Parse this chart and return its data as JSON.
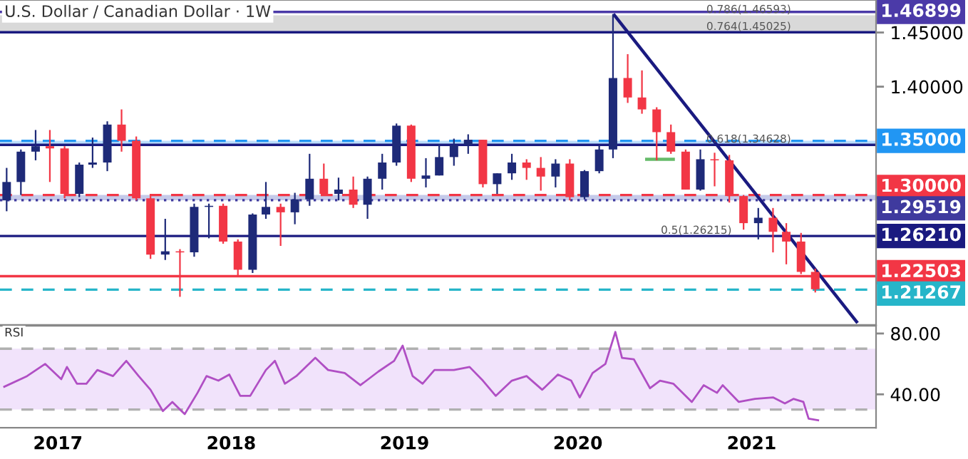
{
  "chart_data": [
    {
      "type": "candlestick",
      "title": "U.S. Dollar / Canadian Dollar · 1W",
      "tick_labels": "y",
      "x": [
        "2016-09-15",
        "2016-10-15",
        "2016-11-15",
        "2016-12-15",
        "2017-01-15",
        "2017-02-15",
        "2017-03-15",
        "2017-04-15",
        "2017-05-15",
        "2017-06-15",
        "2017-07-15",
        "2017-08-15",
        "2017-09-15",
        "2017-10-15",
        "2017-11-15",
        "2017-12-15",
        "2018-01-15",
        "2018-02-15",
        "2018-03-15",
        "2018-04-15",
        "2018-05-15",
        "2018-06-15",
        "2018-07-15",
        "2018-08-15",
        "2018-09-15",
        "2018-10-15",
        "2018-11-15",
        "2018-12-15",
        "2019-01-15",
        "2019-02-15",
        "2019-03-15",
        "2019-04-15",
        "2019-05-15",
        "2019-06-15",
        "2019-07-15",
        "2019-08-15",
        "2019-09-15",
        "2019-10-15",
        "2019-11-15",
        "2019-12-15",
        "2020-01-15",
        "2020-02-15",
        "2020-03-15",
        "2020-04-15",
        "2020-05-15",
        "2020-06-15",
        "2020-07-15",
        "2020-08-15",
        "2020-09-15",
        "2020-10-15",
        "2020-11-15",
        "2020-12-15",
        "2021-01-15",
        "2021-02-15",
        "2021-03-15",
        "2021-04-15",
        "2021-05-15"
      ],
      "ohlc": [
        [
          1.295,
          1.325,
          1.285,
          1.312
        ],
        [
          1.312,
          1.342,
          1.3,
          1.34
        ],
        [
          1.34,
          1.36,
          1.332,
          1.345
        ],
        [
          1.345,
          1.36,
          1.312,
          1.343
        ],
        [
          1.343,
          1.345,
          1.297,
          1.301
        ],
        [
          1.301,
          1.33,
          1.298,
          1.328
        ],
        [
          1.328,
          1.353,
          1.325,
          1.33
        ],
        [
          1.33,
          1.368,
          1.322,
          1.365
        ],
        [
          1.365,
          1.379,
          1.34,
          1.35
        ],
        [
          1.35,
          1.354,
          1.295,
          1.297
        ],
        [
          1.297,
          1.299,
          1.241,
          1.245
        ],
        [
          1.245,
          1.278,
          1.24,
          1.248
        ],
        [
          1.248,
          1.25,
          1.206,
          1.247
        ],
        [
          1.247,
          1.292,
          1.243,
          1.289
        ],
        [
          1.289,
          1.292,
          1.26,
          1.29
        ],
        [
          1.29,
          1.292,
          1.255,
          1.257
        ],
        [
          1.257,
          1.259,
          1.225,
          1.231
        ],
        [
          1.231,
          1.283,
          1.228,
          1.282
        ],
        [
          1.282,
          1.312,
          1.278,
          1.289
        ],
        [
          1.289,
          1.292,
          1.253,
          1.284
        ],
        [
          1.284,
          1.302,
          1.273,
          1.296
        ],
        [
          1.296,
          1.338,
          1.29,
          1.315
        ],
        [
          1.315,
          1.329,
          1.301,
          1.301
        ],
        [
          1.301,
          1.316,
          1.295,
          1.305
        ],
        [
          1.305,
          1.317,
          1.288,
          1.291
        ],
        [
          1.291,
          1.317,
          1.278,
          1.315
        ],
        [
          1.315,
          1.338,
          1.305,
          1.33
        ],
        [
          1.33,
          1.366,
          1.327,
          1.364
        ],
        [
          1.364,
          1.365,
          1.312,
          1.315
        ],
        [
          1.315,
          1.334,
          1.307,
          1.318
        ],
        [
          1.318,
          1.347,
          1.318,
          1.335
        ],
        [
          1.335,
          1.352,
          1.327,
          1.346
        ],
        [
          1.346,
          1.356,
          1.338,
          1.351
        ],
        [
          1.351,
          1.351,
          1.307,
          1.31
        ],
        [
          1.31,
          1.32,
          1.301,
          1.32
        ],
        [
          1.32,
          1.338,
          1.314,
          1.33
        ],
        [
          1.33,
          1.333,
          1.314,
          1.325
        ],
        [
          1.325,
          1.335,
          1.304,
          1.317
        ],
        [
          1.317,
          1.333,
          1.307,
          1.329
        ],
        [
          1.329,
          1.333,
          1.295,
          1.298
        ],
        [
          1.298,
          1.323,
          1.296,
          1.322
        ],
        [
          1.322,
          1.346,
          1.32,
          1.342
        ],
        [
          1.342,
          1.467,
          1.334,
          1.408
        ],
        [
          1.408,
          1.43,
          1.385,
          1.39
        ],
        [
          1.39,
          1.415,
          1.375,
          1.379
        ],
        [
          1.379,
          1.381,
          1.332,
          1.358
        ],
        [
          1.358,
          1.365,
          1.338,
          1.34
        ],
        [
          1.34,
          1.342,
          1.305,
          1.305
        ],
        [
          1.305,
          1.342,
          1.304,
          1.333
        ],
        [
          1.333,
          1.339,
          1.308,
          1.332
        ],
        [
          1.332,
          1.337,
          1.293,
          1.299
        ],
        [
          1.299,
          1.3,
          1.268,
          1.274
        ],
        [
          1.274,
          1.288,
          1.259,
          1.279
        ],
        [
          1.279,
          1.288,
          1.247,
          1.266
        ],
        [
          1.266,
          1.274,
          1.236,
          1.257
        ],
        [
          1.257,
          1.265,
          1.227,
          1.229
        ],
        [
          1.229,
          1.232,
          1.21,
          1.213
        ]
      ],
      "colors": [
        "#1e2a78",
        "#1e2a78",
        "#1e2a78",
        "#f23645",
        "#f23645",
        "#1e2a78",
        "#1e2a78",
        "#1e2a78",
        "#f23645",
        "#f23645",
        "#f23645",
        "#1e2a78",
        "#f23645",
        "#1e2a78",
        "#1e2a78",
        "#f23645",
        "#f23645",
        "#1e2a78",
        "#1e2a78",
        "#f23645",
        "#1e2a78",
        "#1e2a78",
        "#f23645",
        "#1e2a78",
        "#f23645",
        "#1e2a78",
        "#1e2a78",
        "#1e2a78",
        "#f23645",
        "#1e2a78",
        "#1e2a78",
        "#1e2a78",
        "#1e2a78",
        "#f23645",
        "#1e2a78",
        "#1e2a78",
        "#f23645",
        "#f23645",
        "#1e2a78",
        "#f23645",
        "#1e2a78",
        "#1e2a78",
        "#1e2a78",
        "#f23645",
        "#f23645",
        "#f23645",
        "#f23645",
        "#f23645",
        "#1e2a78",
        "#f23645",
        "#f23645",
        "#f23645",
        "#1e2a78",
        "#f23645",
        "#f23645",
        "#f23645",
        "#f23645"
      ],
      "series": [
        {
          "type": "line",
          "color": "#1a1a80",
          "x": [
            "2020-03-18",
            "2021-08-10"
          ],
          "values": [
            1.466,
            1.183
          ]
        },
        {
          "type": "line",
          "color": "#66bb6a",
          "x": [
            "2020-05-25",
            "2020-07-20"
          ],
          "values": [
            1.333,
            1.333
          ]
        }
      ],
      "xlim": [
        "2016-09-01",
        "2021-09-20"
      ],
      "ylim": [
        1.18,
        1.48
      ],
      "yticks": [
        {
          "value": 1.4,
          "label": "1.40000"
        },
        {
          "value": 1.45,
          "label": "1.45000"
        }
      ],
      "bands": [
        {
          "axis": "y",
          "from": 1.45025,
          "to": 1.46593,
          "color": "#d9d9d9"
        },
        {
          "axis": "y",
          "from": 1.34628,
          "to": 1.35,
          "color": "#bbdefb"
        },
        {
          "axis": "y",
          "from": 1.29519,
          "to": 1.3,
          "color": "#c5cae9"
        }
      ],
      "ref_lines": [
        {
          "axis": "y",
          "value": 1.46899,
          "label": "1.46899",
          "color": "#4b3aa8",
          "line_style": "solid"
        },
        {
          "axis": "y",
          "value": 1.45025,
          "color": "#1a1a80",
          "line_style": "solid"
        },
        {
          "axis": "y",
          "value": 1.35,
          "label": "1.35000",
          "color": "#2196f3",
          "line_style": "dashed"
        },
        {
          "axis": "y",
          "value": 1.34628,
          "color": "#1a1a80",
          "line_style": "solid"
        },
        {
          "axis": "y",
          "value": 1.3,
          "label": "1.30000",
          "color": "#f23645",
          "line_style": "dashed"
        },
        {
          "axis": "y",
          "value": 1.29519,
          "label": "1.29519",
          "color": "#3f3a9e",
          "line_style": "dotted"
        },
        {
          "axis": "y",
          "value": 1.2621,
          "label": "1.26210",
          "color": "#1a1a80",
          "line_style": "solid"
        },
        {
          "axis": "y",
          "value": 1.22503,
          "label": "1.22503",
          "color": "#f23645",
          "line_style": "solid"
        },
        {
          "axis": "y",
          "value": 1.21267,
          "label": "1.21267",
          "color": "#26b5c9",
          "line_style": "dashed"
        }
      ],
      "annotations": [
        {
          "text": "0.786(1.46593)",
          "x": "2021-03-25",
          "y": 1.46593
        },
        {
          "text": "0.764(1.45025)",
          "x": "2021-03-25",
          "y": 1.45025
        },
        {
          "text": "0.618(1.34628)",
          "x": "2021-03-25",
          "y": 1.34628
        },
        {
          "text": "0.5(1.26215)",
          "x": "2020-11-20",
          "y": 1.26215
        }
      ]
    },
    {
      "type": "line",
      "title": "RSI",
      "series": [
        {
          "color": "#b04fc4",
          "x": [
            "2016-09-10",
            "2016-10-28",
            "2016-12-05",
            "2017-01-08",
            "2017-01-20",
            "2017-02-10",
            "2017-03-02",
            "2017-03-25",
            "2017-04-27",
            "2017-05-25",
            "2017-06-20",
            "2017-07-15",
            "2017-08-10",
            "2017-08-30",
            "2017-09-25",
            "2017-10-22",
            "2017-11-10",
            "2017-12-05",
            "2017-12-28",
            "2018-01-20",
            "2018-02-10",
            "2018-03-15",
            "2018-04-03",
            "2018-04-24",
            "2018-05-18",
            "2018-06-27",
            "2018-07-24",
            "2018-08-28",
            "2018-09-30",
            "2018-11-07",
            "2018-12-10",
            "2018-12-28",
            "2019-01-18",
            "2019-02-08",
            "2019-03-05",
            "2019-04-15",
            "2019-05-18",
            "2019-06-15",
            "2019-07-12",
            "2019-08-15",
            "2019-09-15",
            "2019-10-18",
            "2019-11-20",
            "2019-12-18",
            "2020-01-05",
            "2020-02-01",
            "2020-02-28",
            "2020-03-20",
            "2020-04-03",
            "2020-04-28",
            "2020-06-01",
            "2020-06-22",
            "2020-07-20",
            "2020-08-28",
            "2020-09-22",
            "2020-10-20",
            "2020-11-01",
            "2020-12-05",
            "2021-01-08",
            "2021-02-15",
            "2021-03-12",
            "2021-03-30",
            "2021-04-20",
            "2021-05-01",
            "2021-05-21"
          ],
          "values": [
            45,
            52,
            60,
            50,
            58,
            47,
            47,
            56,
            52,
            62,
            52,
            43,
            29,
            35,
            27,
            41,
            52,
            49,
            53,
            39,
            39,
            56,
            62,
            47,
            52,
            64,
            56,
            54,
            46,
            55,
            62,
            72,
            52,
            47,
            56,
            56,
            58,
            49,
            39,
            49,
            52,
            43,
            53,
            49,
            38,
            54,
            60,
            81,
            64,
            63,
            44,
            49,
            47,
            35,
            46,
            41,
            46,
            35,
            37,
            38,
            34,
            37,
            35,
            24,
            23
          ]
        }
      ],
      "xlim": [
        "2016-09-01",
        "2021-09-20"
      ],
      "ylim": [
        18,
        85
      ],
      "xticks": [
        {
          "value": "2017-01-01",
          "label": "2017"
        },
        {
          "value": "2018-01-01",
          "label": "2018"
        },
        {
          "value": "2019-01-01",
          "label": "2019"
        },
        {
          "value": "2020-01-01",
          "label": "2020"
        },
        {
          "value": "2021-01-01",
          "label": "2021"
        }
      ],
      "yticks": [
        {
          "value": 40,
          "label": "40.00"
        },
        {
          "value": 80,
          "label": "80.00"
        }
      ],
      "bands": [
        {
          "axis": "y",
          "from": 30,
          "to": 70,
          "color": "#f1e3fb"
        }
      ],
      "ref_lines": [
        {
          "axis": "y",
          "value": 70,
          "color": "#b0b0b0",
          "line_style": "dashed"
        },
        {
          "axis": "y",
          "value": 30,
          "color": "#b0b0b0",
          "line_style": "dashed"
        }
      ]
    }
  ]
}
